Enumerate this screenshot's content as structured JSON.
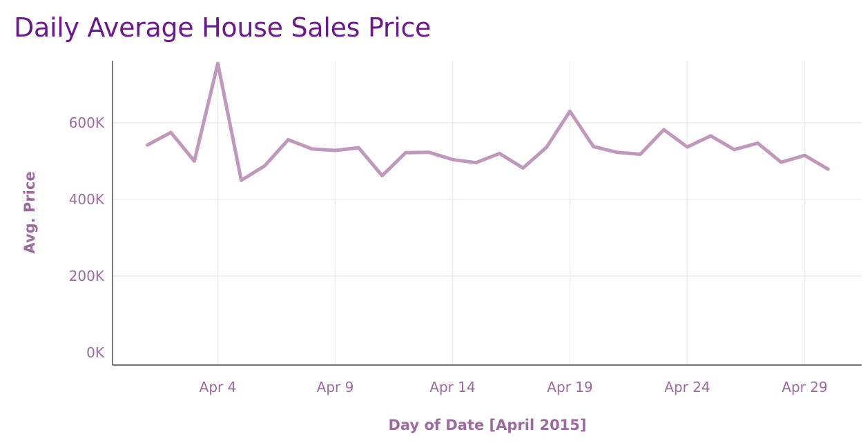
{
  "chart_data": {
    "type": "line",
    "title": "Daily Average House Sales Price",
    "xlabel": "Day of Date [April 2015]",
    "ylabel": "Avg. Price",
    "x_tick_labels": [
      "Apr 4",
      "Apr 9",
      "Apr 14",
      "Apr 19",
      "Apr 24",
      "Apr 29"
    ],
    "x_ticks": [
      4,
      9,
      14,
      19,
      24,
      29
    ],
    "y_tick_labels": [
      "0K",
      "200K",
      "400K",
      "600K"
    ],
    "y_ticks": [
      0,
      200000,
      400000,
      600000
    ],
    "xlim": [
      0.5,
      31.5
    ],
    "ylim": [
      0,
      760000
    ],
    "grid": true,
    "line_color": "#bf98bc",
    "series": [
      {
        "x": [
          1,
          2,
          3,
          4,
          5,
          6,
          7,
          8,
          9,
          10,
          11,
          12,
          13,
          14,
          15,
          16,
          17,
          18,
          19,
          20,
          21,
          22,
          23,
          24,
          25,
          26,
          27,
          28,
          29,
          30
        ],
        "values": [
          542000,
          575000,
          500000,
          755000,
          450000,
          488000,
          556000,
          532000,
          528000,
          535000,
          462000,
          522000,
          523000,
          504000,
          496000,
          520000,
          482000,
          536000,
          630000,
          538000,
          523000,
          518000,
          582000,
          537000,
          566000,
          530000,
          547000,
          497000,
          515000,
          479000
        ]
      }
    ]
  }
}
